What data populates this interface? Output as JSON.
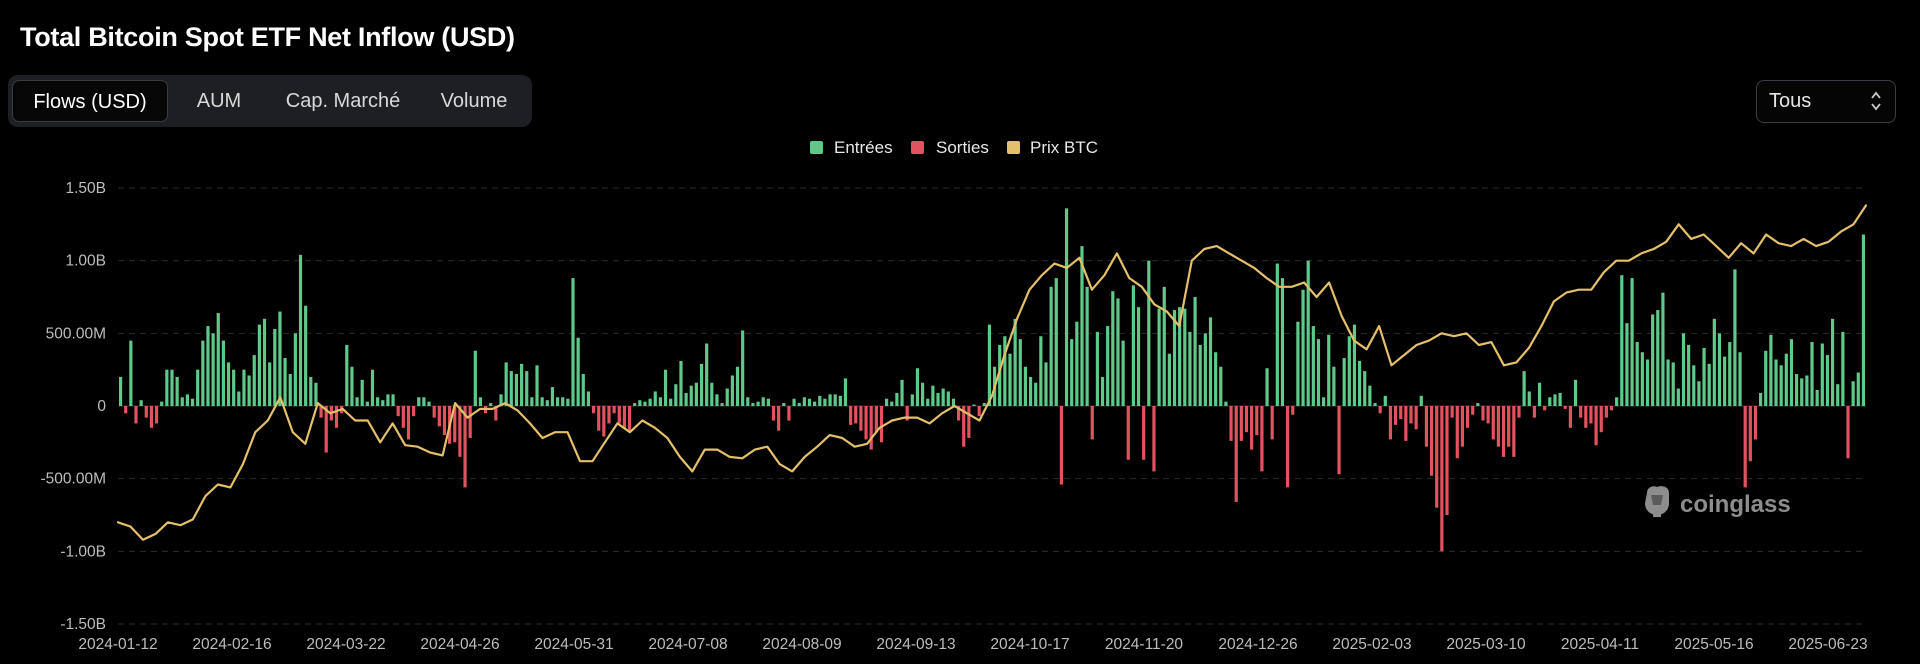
{
  "title": "Total Bitcoin Spot ETF Net Inflow (USD)",
  "tabs": [
    {
      "label": "Flows (USD)",
      "active": true
    },
    {
      "label": "AUM",
      "active": false
    },
    {
      "label": "Cap. Marché",
      "active": false
    },
    {
      "label": "Volume",
      "active": false
    }
  ],
  "range_select": {
    "value": "Tous",
    "icon": "chevron-updown-icon"
  },
  "watermark": {
    "text": "coinglass",
    "icon": "coinglass-logo-icon"
  },
  "chart_data": {
    "type": "bar",
    "title": "Total Bitcoin Spot ETF Net Inflow (USD)",
    "xlabel": "",
    "ylabel": "",
    "ylim": [
      -1.5,
      1.5
    ],
    "y_unit": "B USD",
    "y_ticks": [
      1.5,
      1.0,
      0.5,
      0,
      -0.5,
      -1.0,
      -1.5
    ],
    "y_tick_labels": [
      "1.50B",
      "1.00B",
      "500.00M",
      "0",
      "-500.00M",
      "-1.00B",
      "-1.50B"
    ],
    "x_tick_labels": [
      "2024-01-12",
      "2024-02-16",
      "2024-03-22",
      "2024-04-26",
      "2024-05-31",
      "2024-07-08",
      "2024-08-09",
      "2024-09-13",
      "2024-10-17",
      "2024-11-20",
      "2024-12-26",
      "2025-02-03",
      "2025-03-10",
      "2025-04-11",
      "2025-05-16",
      "2025-06-23"
    ],
    "grid": true,
    "legend_position": "top-center",
    "legend": [
      {
        "label": "Entrées",
        "color": "#5fc98a"
      },
      {
        "label": "Sorties",
        "color": "#e2525f"
      },
      {
        "label": "Prix BTC",
        "color": "#e5c06a"
      }
    ],
    "colors": {
      "inflow": "#5fc98a",
      "outflow": "#e2525f",
      "price": "#e5c06a"
    },
    "series": [
      {
        "name": "Entrées / Sorties",
        "kind": "bar",
        "values": [
          0.2,
          -0.05,
          0.45,
          -0.12,
          0.04,
          -0.08,
          -0.15,
          -0.12,
          0.03,
          0.25,
          0.25,
          0.2,
          0.06,
          0.08,
          0.05,
          0.25,
          0.45,
          0.55,
          0.5,
          0.64,
          0.45,
          0.3,
          0.25,
          0.1,
          0.25,
          0.21,
          0.35,
          0.56,
          0.6,
          0.3,
          0.53,
          0.65,
          0.33,
          0.22,
          0.5,
          1.04,
          0.69,
          0.2,
          0.16,
          -0.08,
          -0.32,
          -0.1,
          -0.15,
          -0.05,
          0.42,
          0.27,
          0.06,
          0.18,
          0.03,
          0.25,
          0.06,
          0.04,
          0.08,
          0.08,
          -0.07,
          -0.15,
          -0.23,
          -0.07,
          0.06,
          0.06,
          0.03,
          -0.08,
          -0.14,
          -0.2,
          -0.26,
          -0.25,
          -0.35,
          -0.56,
          -0.22,
          0.38,
          0.06,
          -0.05,
          0.02,
          -0.1,
          0.08,
          0.3,
          0.24,
          0.22,
          0.29,
          0.24,
          0.06,
          0.28,
          0.06,
          0.04,
          0.13,
          0.06,
          0.06,
          0.05,
          0.88,
          0.47,
          0.22,
          0.1,
          -0.05,
          -0.17,
          -0.21,
          -0.12,
          -0.05,
          -0.12,
          -0.15,
          -0.17,
          0.02,
          0.04,
          0.03,
          0.05,
          0.1,
          0.06,
          0.25,
          0.05,
          0.15,
          0.31,
          0.09,
          0.14,
          0.16,
          0.29,
          0.43,
          0.16,
          0.08,
          0.02,
          0.12,
          0.21,
          0.27,
          0.52,
          0.06,
          0.02,
          0.03,
          0.06,
          0.05,
          -0.1,
          -0.17,
          0.02,
          -0.1,
          0.05,
          0.02,
          0.06,
          0.05,
          0.03,
          0.07,
          0.05,
          0.08,
          0.08,
          0.07,
          0.19,
          -0.13,
          -0.12,
          -0.17,
          -0.23,
          -0.3,
          -0.18,
          -0.25,
          0.05,
          0.03,
          0.09,
          0.18,
          -0.1,
          0.08,
          0.26,
          0.16,
          0.05,
          0.14,
          0.09,
          0.12,
          0.1,
          0.05,
          -0.1,
          -0.28,
          -0.22,
          0.01,
          -0.07,
          0.02,
          0.56,
          0.27,
          0.42,
          0.48,
          0.36,
          0.6,
          0.46,
          0.27,
          0.2,
          0.16,
          0.48,
          0.3,
          0.82,
          0.88,
          -0.54,
          1.36,
          0.46,
          0.58,
          1.1,
          0.82,
          -0.23,
          0.51,
          0.2,
          0.55,
          0.79,
          0.74,
          0.45,
          -0.37,
          0.83,
          0.68,
          -0.37,
          1.0,
          -0.45,
          0.67,
          0.82,
          0.36,
          0.66,
          0.68,
          0.67,
          0.51,
          0.75,
          0.42,
          0.5,
          0.61,
          0.37,
          0.27,
          0.03,
          -0.24,
          -0.66,
          -0.24,
          -0.18,
          -0.3,
          -0.2,
          -0.45,
          0.26,
          -0.23,
          0.98,
          0.88,
          -0.56,
          -0.06,
          0.58,
          0.8,
          1.0,
          0.55,
          0.46,
          0.06,
          0.49,
          0.27,
          -0.47,
          0.33,
          0.48,
          0.56,
          0.31,
          0.24,
          0.14,
          0.02,
          -0.05,
          0.07,
          -0.23,
          -0.13,
          -0.09,
          -0.24,
          -0.12,
          -0.16,
          0.07,
          -0.28,
          -0.48,
          -0.7,
          -1.0,
          -0.75,
          -0.08,
          -0.36,
          -0.28,
          -0.15,
          -0.06,
          0.02,
          -0.1,
          -0.12,
          -0.23,
          -0.28,
          -0.35,
          -0.28,
          -0.35,
          -0.08,
          0.24,
          0.1,
          -0.08,
          0.16,
          -0.03,
          0.06,
          0.08,
          0.09,
          -0.02,
          -0.15,
          0.18,
          -0.08,
          -0.15,
          -0.12,
          -0.27,
          -0.18,
          -0.08,
          -0.03,
          0.06,
          0.9,
          0.57,
          0.88,
          0.44,
          0.37,
          0.32,
          0.63,
          0.66,
          0.78,
          0.32,
          0.3,
          0.12,
          0.5,
          0.42,
          0.28,
          0.17,
          0.4,
          0.29,
          0.6,
          0.5,
          0.34,
          0.44,
          0.94,
          0.37,
          -0.56,
          -0.38,
          -0.23,
          0.09,
          0.38,
          0.49,
          0.32,
          0.28,
          0.36,
          0.46,
          0.22,
          0.19,
          0.21,
          0.44,
          0.11,
          0.43,
          0.35,
          0.6,
          0.15,
          0.51,
          -0.36,
          0.17,
          0.23,
          1.18
        ]
      },
      {
        "name": "Prix BTC",
        "kind": "line",
        "values": [
          -0.8,
          -0.83,
          -0.92,
          -0.88,
          -0.8,
          -0.82,
          -0.78,
          -0.62,
          -0.54,
          -0.56,
          -0.4,
          -0.18,
          -0.1,
          0.06,
          -0.18,
          -0.26,
          0.02,
          -0.05,
          -0.02,
          -0.1,
          -0.1,
          -0.25,
          -0.12,
          -0.27,
          -0.28,
          -0.32,
          -0.34,
          0.02,
          -0.08,
          -0.02,
          -0.02,
          0.02,
          -0.03,
          -0.12,
          -0.22,
          -0.18,
          -0.18,
          -0.38,
          -0.38,
          -0.25,
          -0.12,
          -0.18,
          -0.1,
          -0.15,
          -0.22,
          -0.35,
          -0.45,
          -0.3,
          -0.3,
          -0.35,
          -0.36,
          -0.3,
          -0.28,
          -0.4,
          -0.45,
          -0.35,
          -0.28,
          -0.2,
          -0.22,
          -0.28,
          -0.26,
          -0.15,
          -0.1,
          -0.08,
          -0.08,
          -0.12,
          -0.05,
          0.0,
          -0.05,
          -0.1,
          0.07,
          0.35,
          0.6,
          0.8,
          0.9,
          0.98,
          0.95,
          1.02,
          0.8,
          0.9,
          1.05,
          0.88,
          0.82,
          0.7,
          0.65,
          0.55,
          1.0,
          1.08,
          1.1,
          1.05,
          1.0,
          0.95,
          0.88,
          0.82,
          0.82,
          0.85,
          0.75,
          0.85,
          0.62,
          0.45,
          0.39,
          0.55,
          0.28,
          0.35,
          0.42,
          0.45,
          0.5,
          0.48,
          0.5,
          0.42,
          0.44,
          0.28,
          0.3,
          0.4,
          0.55,
          0.72,
          0.78,
          0.8,
          0.8,
          0.92,
          1.0,
          1.0,
          1.05,
          1.08,
          1.13,
          1.25,
          1.15,
          1.18,
          1.1,
          1.02,
          1.12,
          1.05,
          1.18,
          1.12,
          1.1,
          1.15,
          1.1,
          1.13,
          1.2,
          1.25,
          1.38
        ]
      }
    ]
  }
}
